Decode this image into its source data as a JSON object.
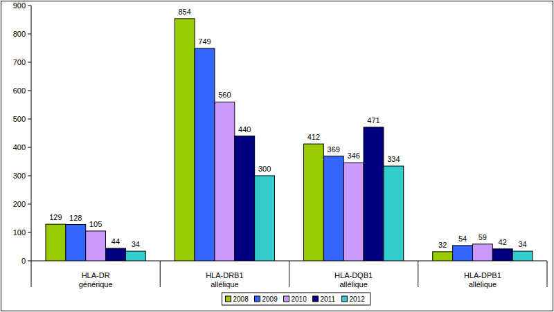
{
  "chart_data": {
    "type": "bar",
    "categories": [
      "HLA-DR générique",
      "HLA-DRB1 allélique",
      "HLA-DQB1 allélique",
      "HLA-DPB1 allélique"
    ],
    "series": [
      {
        "name": "2008",
        "color": "#99cc00",
        "values": [
          129,
          854,
          412,
          32
        ]
      },
      {
        "name": "2009",
        "color": "#3366ff",
        "values": [
          128,
          749,
          369,
          54
        ]
      },
      {
        "name": "2010",
        "color": "#cc99ff",
        "values": [
          105,
          560,
          346,
          59
        ]
      },
      {
        "name": "2011",
        "color": "#000080",
        "values": [
          44,
          440,
          471,
          42
        ]
      },
      {
        "name": "2012",
        "color": "#33cccc",
        "values": [
          34,
          300,
          334,
          34
        ]
      }
    ],
    "ylim": [
      0,
      900
    ],
    "yticks": [
      0,
      100,
      200,
      300,
      400,
      500,
      600,
      700,
      800,
      900
    ],
    "grid": false,
    "legend": "bottom",
    "data_labels": true
  }
}
